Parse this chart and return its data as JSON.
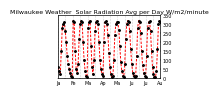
{
  "title": "Milwaukee Weather  Solar Radiation Avg per Day W/m2/minute",
  "line_color": "#ff0000",
  "dot_color": "#000000",
  "bg_color": "#ffffff",
  "grid_color": "#aaaaaa",
  "ylim": [
    0,
    350
  ],
  "yticks": [
    0,
    50,
    100,
    150,
    200,
    250,
    300,
    350
  ],
  "ytick_labels": [
    "0",
    "50",
    "100",
    "150",
    "200",
    "250",
    "300",
    "350"
  ],
  "y_values": [
    60,
    40,
    20,
    150,
    280,
    300,
    310,
    260,
    200,
    120,
    80,
    50,
    30,
    10,
    5,
    320,
    310,
    150,
    50,
    30,
    80,
    220,
    300,
    320,
    310,
    200,
    100,
    40,
    10,
    5,
    280,
    310,
    320,
    180,
    60,
    20,
    100,
    260,
    310,
    320,
    300,
    200,
    100,
    50,
    20,
    10,
    200,
    310,
    320,
    300,
    240,
    140,
    60,
    20,
    5,
    10,
    100,
    240,
    300,
    315,
    310,
    270,
    180,
    90,
    40,
    10,
    5,
    80,
    220,
    300,
    320,
    310,
    260,
    160,
    80,
    30,
    10,
    5,
    10,
    120,
    280,
    320,
    310,
    250,
    150,
    70,
    30,
    10,
    5,
    120,
    280,
    310,
    320,
    260,
    150,
    60,
    20,
    5,
    5,
    40,
    160,
    300,
    320,
    310
  ],
  "x_tick_positions": [
    0,
    7,
    15,
    22,
    30,
    37,
    45,
    52,
    59,
    67,
    74,
    81,
    88,
    96,
    103
  ],
  "x_tick_labels": [
    "Ja",
    "",
    "Fe",
    "",
    "Ma",
    "",
    "Ap",
    "",
    "Ma",
    "",
    "Ju",
    "",
    "Ju",
    "",
    "Au"
  ],
  "title_fontsize": 4.5,
  "tick_fontsize": 3.5,
  "ylabel_side": "right"
}
